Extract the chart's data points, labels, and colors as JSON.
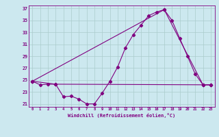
{
  "xlabel": "Windchill (Refroidissement éolien,°C)",
  "background_color": "#cce8ef",
  "grid_color": "#aacccc",
  "line_color": "#800080",
  "xlim": [
    -0.5,
    23.5
  ],
  "ylim": [
    20.5,
    37.5
  ],
  "yticks": [
    21,
    23,
    25,
    27,
    29,
    31,
    33,
    35,
    37
  ],
  "xticks": [
    0,
    1,
    2,
    3,
    4,
    5,
    6,
    7,
    8,
    9,
    10,
    11,
    12,
    13,
    14,
    15,
    16,
    17,
    18,
    19,
    20,
    21,
    22,
    23
  ],
  "series1_x": [
    0,
    1,
    2,
    3,
    4,
    5,
    6,
    7,
    8,
    9,
    10,
    11,
    12,
    13,
    14,
    15,
    16,
    17,
    18,
    19,
    20,
    21,
    22,
    23
  ],
  "series1_y": [
    24.8,
    24.2,
    24.3,
    24.3,
    22.2,
    22.3,
    21.8,
    21.0,
    21.0,
    22.8,
    24.8,
    27.2,
    30.4,
    32.6,
    34.2,
    35.8,
    36.4,
    36.8,
    35.0,
    32.0,
    29.0,
    26.0,
    24.2,
    24.2
  ],
  "series2_x": [
    0,
    3,
    22,
    23
  ],
  "series2_y": [
    24.8,
    24.3,
    24.2,
    24.2
  ],
  "series3_x": [
    0,
    17,
    22,
    23
  ],
  "series3_y": [
    24.8,
    36.8,
    24.2,
    24.2
  ]
}
